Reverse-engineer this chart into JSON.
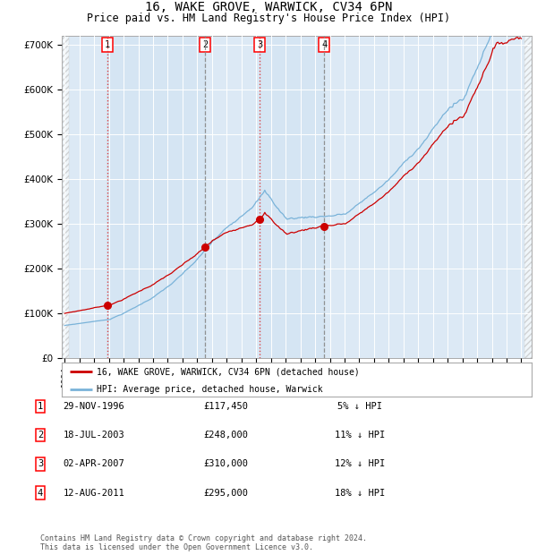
{
  "title": "16, WAKE GROVE, WARWICK, CV34 6PN",
  "subtitle": "Price paid vs. HM Land Registry's House Price Index (HPI)",
  "title_fontsize": 10,
  "subtitle_fontsize": 8.5,
  "hpi_color": "#7ab3d9",
  "price_color": "#cc0000",
  "background_color": "#ffffff",
  "plot_bg_color": "#dce9f5",
  "grid_color": "#ffffff",
  "ylim": [
    0,
    720000
  ],
  "yticks": [
    0,
    100000,
    200000,
    300000,
    400000,
    500000,
    600000,
    700000
  ],
  "ytick_labels": [
    "£0",
    "£100K",
    "£200K",
    "£300K",
    "£400K",
    "£500K",
    "£600K",
    "£700K"
  ],
  "x_start_year": 1994,
  "x_end_year": 2025,
  "sale_dates_decimal": [
    1996.91,
    2003.54,
    2007.25,
    2011.62
  ],
  "sale_prices": [
    117450,
    248000,
    310000,
    295000
  ],
  "sale_labels": [
    "1",
    "2",
    "3",
    "4"
  ],
  "vline_styles": [
    "red_dot",
    "gray_dash",
    "red_dot",
    "gray_dash"
  ],
  "legend_label_red": "16, WAKE GROVE, WARWICK, CV34 6PN (detached house)",
  "legend_label_blue": "HPI: Average price, detached house, Warwick",
  "table_rows": [
    [
      "1",
      "29-NOV-1996",
      "£117,450",
      "5% ↓ HPI"
    ],
    [
      "2",
      "18-JUL-2003",
      "£248,000",
      "11% ↓ HPI"
    ],
    [
      "3",
      "02-APR-2007",
      "£310,000",
      "12% ↓ HPI"
    ],
    [
      "4",
      "12-AUG-2011",
      "£295,000",
      "18% ↓ HPI"
    ]
  ],
  "footnote": "Contains HM Land Registry data © Crown copyright and database right 2024.\nThis data is licensed under the Open Government Licence v3.0.",
  "footnote_fontsize": 6.0
}
